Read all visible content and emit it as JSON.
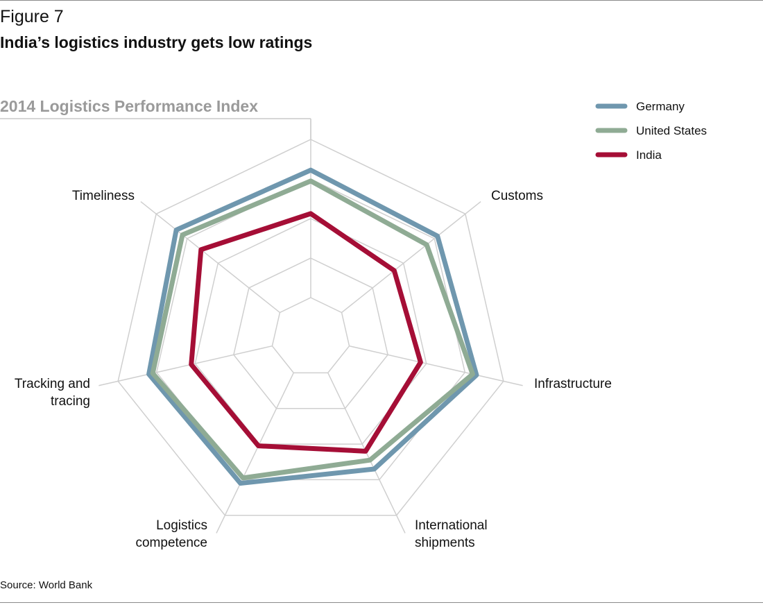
{
  "figure": {
    "label": "Figure 7",
    "title": "India’s logistics industry gets low ratings",
    "source": "Source: World Bank"
  },
  "chart_data": {
    "type": "radar",
    "title": "2014 Logistics Performance Index",
    "axes": [
      "Customs",
      "Infrastructure",
      "International shipments",
      "Logistics competence",
      "Tracking and tracing",
      "Timeliness"
    ],
    "range": [
      0,
      5
    ],
    "rings": 5,
    "grid": true,
    "legend_position": "top-right",
    "series": [
      {
        "name": "Germany",
        "color": "#6f97ae",
        "values": [
          4.1,
          4.3,
          3.7,
          4.1,
          4.2,
          4.35
        ]
      },
      {
        "name": "United States",
        "color": "#8fab94",
        "values": [
          3.75,
          4.2,
          3.45,
          3.95,
          4.1,
          4.15
        ]
      },
      {
        "name": "India",
        "color": "#a50e36",
        "values": [
          2.7,
          2.85,
          3.2,
          3.05,
          3.1,
          3.55
        ]
      }
    ]
  }
}
